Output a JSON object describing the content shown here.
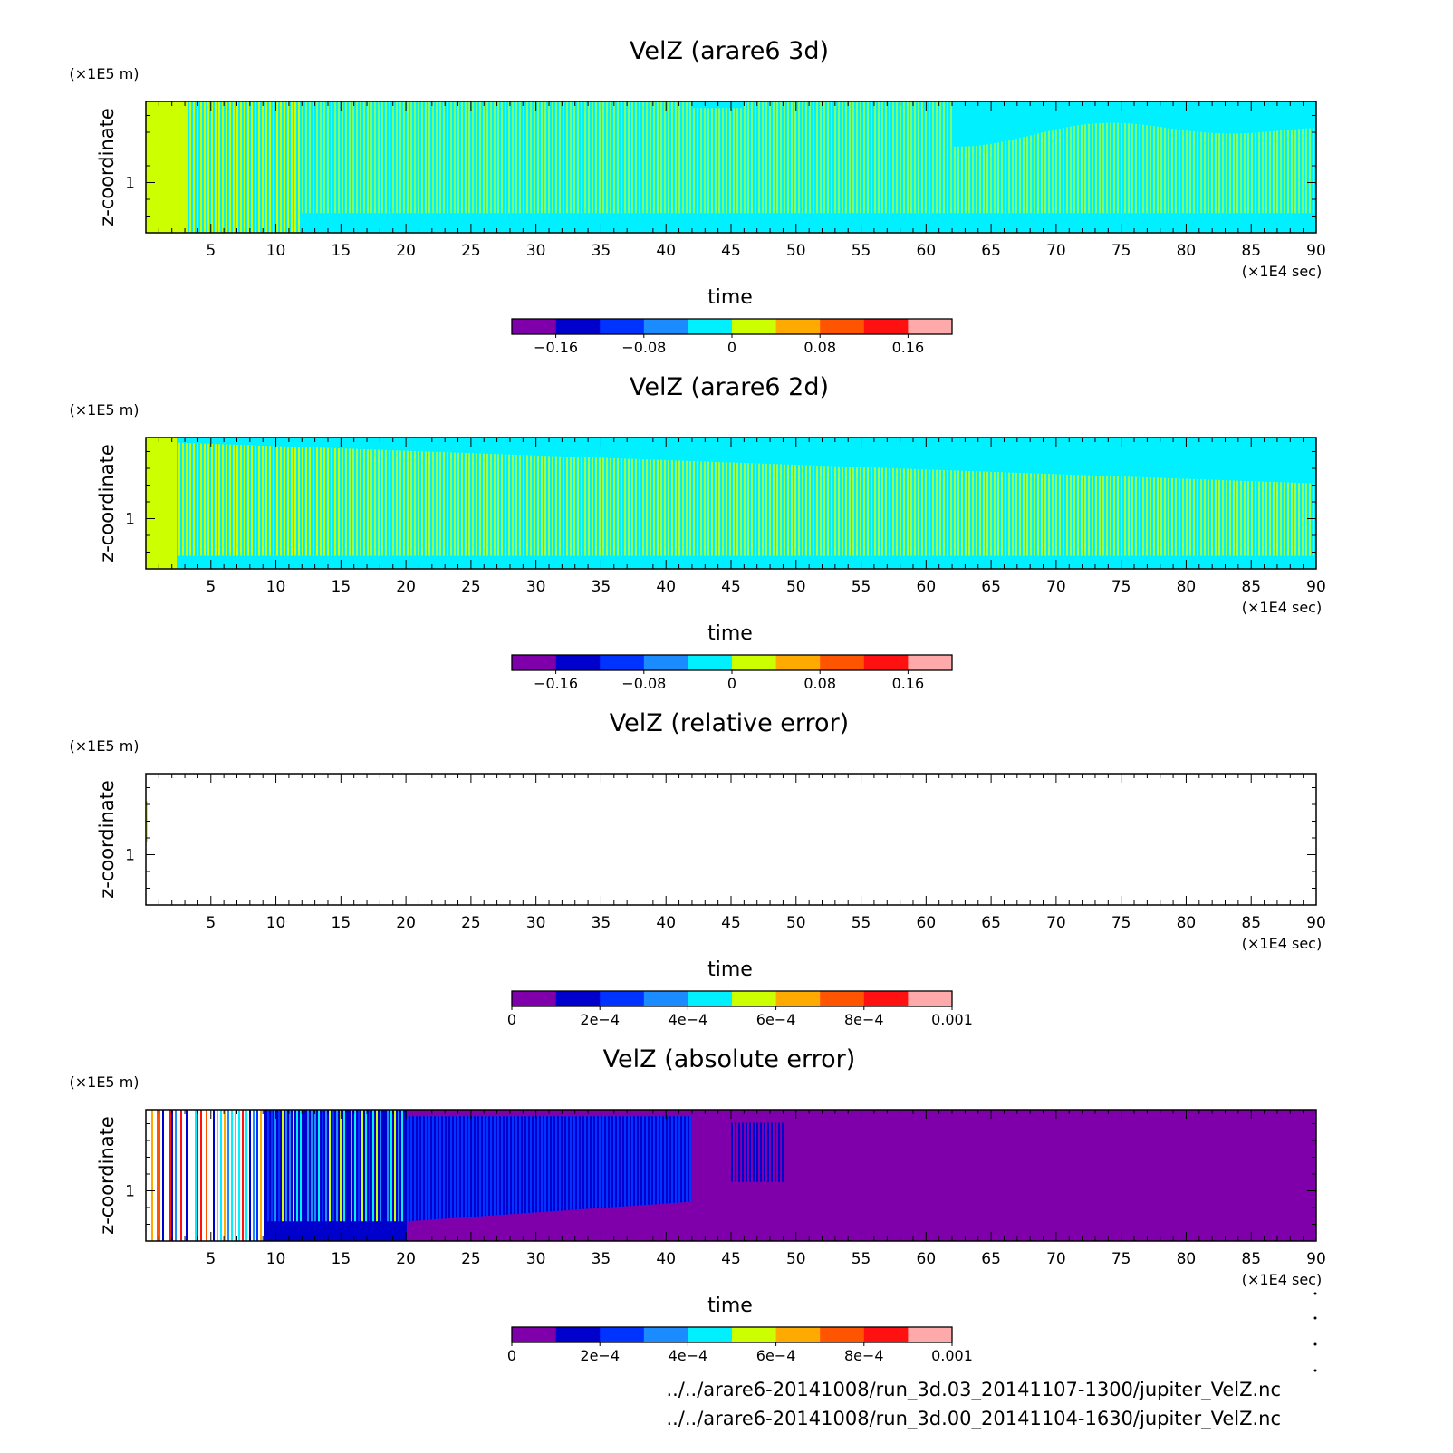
{
  "chart_data": [
    {
      "type": "heatmap",
      "title": "VelZ (arare6 3d)",
      "xlabel": "time",
      "x_unit": "(×1E4 sec)",
      "ylabel": "z-coordinate",
      "y_unit": "(×1E5 m)",
      "xlim": [
        0,
        90
      ],
      "xticks": [
        5,
        10,
        15,
        20,
        25,
        30,
        35,
        40,
        45,
        50,
        55,
        60,
        65,
        70,
        75,
        80,
        85,
        90
      ],
      "yticks": [
        1
      ],
      "colorbar": {
        "levels": [
          -0.2,
          -0.16,
          -0.12,
          -0.08,
          -0.04,
          0,
          0.04,
          0.08,
          0.12,
          0.16,
          0.2
        ],
        "tick_values": [
          -0.16,
          -0.08,
          0,
          0.08,
          0.16
        ],
        "tick_labels": [
          "−0.16",
          "−0.08",
          "0",
          "0.08",
          "0.16"
        ],
        "colors": [
          "#7f00aa",
          "#0000cc",
          "#0033ff",
          "#1a8cff",
          "#00f0ff",
          "#ccff00",
          "#ffaa00",
          "#ff5500",
          "#ff1111",
          "#ffaaaa"
        ]
      },
      "pattern": "3d"
    },
    {
      "type": "heatmap",
      "title": "VelZ (arare6 2d)",
      "xlabel": "time",
      "x_unit": "(×1E4 sec)",
      "ylabel": "z-coordinate",
      "y_unit": "(×1E5 m)",
      "xlim": [
        0,
        90
      ],
      "xticks": [
        5,
        10,
        15,
        20,
        25,
        30,
        35,
        40,
        45,
        50,
        55,
        60,
        65,
        70,
        75,
        80,
        85,
        90
      ],
      "yticks": [
        1
      ],
      "colorbar": {
        "levels": [
          -0.2,
          -0.16,
          -0.12,
          -0.08,
          -0.04,
          0,
          0.04,
          0.08,
          0.12,
          0.16,
          0.2
        ],
        "tick_values": [
          -0.16,
          -0.08,
          0,
          0.08,
          0.16
        ],
        "tick_labels": [
          "−0.16",
          "−0.08",
          "0",
          "0.08",
          "0.16"
        ],
        "colors": [
          "#7f00aa",
          "#0000cc",
          "#0033ff",
          "#1a8cff",
          "#00f0ff",
          "#ccff00",
          "#ffaa00",
          "#ff5500",
          "#ff1111",
          "#ffaaaa"
        ]
      },
      "pattern": "2d"
    },
    {
      "type": "heatmap",
      "title": "VelZ (relative error)",
      "xlabel": "time",
      "x_unit": "(×1E4 sec)",
      "ylabel": "z-coordinate",
      "y_unit": "(×1E5 m)",
      "xlim": [
        0,
        90
      ],
      "xticks": [
        5,
        10,
        15,
        20,
        25,
        30,
        35,
        40,
        45,
        50,
        55,
        60,
        65,
        70,
        75,
        80,
        85,
        90
      ],
      "yticks": [
        1
      ],
      "colorbar": {
        "levels": [
          0,
          0.0001,
          0.0002,
          0.0003,
          0.0004,
          0.0005,
          0.0006,
          0.0007,
          0.0008,
          0.0009,
          0.001
        ],
        "tick_values": [
          0,
          0.0002,
          0.0004,
          0.0006,
          0.0008,
          0.001
        ],
        "tick_labels": [
          "0",
          "2e−4",
          "4e−4",
          "6e−4",
          "8e−4",
          "0.001"
        ],
        "colors": [
          "#7f00aa",
          "#0000cc",
          "#0033ff",
          "#1a8cff",
          "#00f0ff",
          "#ccff00",
          "#ffaa00",
          "#ff5500",
          "#ff1111",
          "#ffaaaa"
        ]
      },
      "pattern": "blank"
    },
    {
      "type": "heatmap",
      "title": "VelZ (absolute error)",
      "xlabel": "time",
      "x_unit": "(×1E4 sec)",
      "ylabel": "z-coordinate",
      "y_unit": "(×1E5 m)",
      "xlim": [
        0,
        90
      ],
      "xticks": [
        5,
        10,
        15,
        20,
        25,
        30,
        35,
        40,
        45,
        50,
        55,
        60,
        65,
        70,
        75,
        80,
        85,
        90
      ],
      "yticks": [
        1
      ],
      "colorbar": {
        "levels": [
          0,
          0.0001,
          0.0002,
          0.0003,
          0.0004,
          0.0005,
          0.0006,
          0.0007,
          0.0008,
          0.0009,
          0.001
        ],
        "tick_values": [
          0,
          0.0002,
          0.0004,
          0.0006,
          0.0008,
          0.001
        ],
        "tick_labels": [
          "0",
          "2e−4",
          "4e−4",
          "6e−4",
          "8e−4",
          "0.001"
        ],
        "colors": [
          "#7f00aa",
          "#0000cc",
          "#0033ff",
          "#1a8cff",
          "#00f0ff",
          "#ccff00",
          "#ffaa00",
          "#ff5500",
          "#ff1111",
          "#ffaaaa"
        ]
      },
      "pattern": "abs"
    }
  ],
  "footer": {
    "line1": "../../arare6-20141008/run_3d.03_20141107-1300/jupiter_VelZ.nc",
    "line2": "../../arare6-20141008/run_3d.00_20141104-1630/jupiter_VelZ.nc"
  }
}
